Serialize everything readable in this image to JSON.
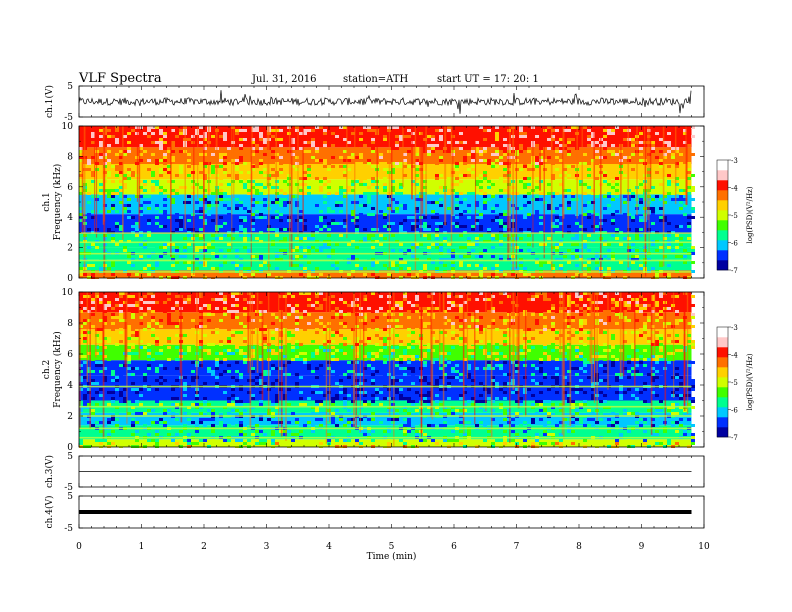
{
  "header": {
    "title": "VLF  Spectra",
    "date": "Jul.  31,  2016",
    "station": "station=ATH",
    "start_ut": "start  UT  =    17: 20: 1"
  },
  "chart_data": [
    {
      "type": "line",
      "panel": "ch1-waveform",
      "ylabel": "ch.1(V)",
      "y_ticks": [
        "5",
        "-5"
      ],
      "ylim": [
        -5,
        5
      ],
      "trace_level_v": 0,
      "noise_amplitude_v": 1.2,
      "color": "#000000"
    },
    {
      "type": "heatmap",
      "panel": "ch1-spectrogram",
      "ylabel_channel": "ch.1",
      "ylabel": "Frequency  (kHz)",
      "y_ticks": [
        "0",
        "2",
        "4",
        "6",
        "8",
        "10"
      ],
      "ylim": [
        0,
        10
      ],
      "colorbar": {
        "label": "log(PSD)(V²/Hz)",
        "ticks": [
          "-3",
          "-4",
          "-5",
          "-6",
          "-7"
        ],
        "range": [
          -7,
          -3
        ],
        "colors": [
          "#0000a0",
          "#0030ff",
          "#00c8ff",
          "#00ff90",
          "#40ff00",
          "#d0ff00",
          "#ffd000",
          "#ff7000",
          "#ff1000",
          "#ffc8c8",
          "#ffffff"
        ]
      },
      "bands": [
        {
          "from_khz": 0.0,
          "to_khz": 0.5,
          "log_psd": -4.2
        },
        {
          "from_khz": 0.5,
          "to_khz": 1.2,
          "log_psd": -5.4
        },
        {
          "from_khz": 1.2,
          "to_khz": 2.0,
          "log_psd": -5.7
        },
        {
          "from_khz": 2.0,
          "to_khz": 2.9,
          "log_psd": -5.4
        },
        {
          "from_khz": 2.9,
          "to_khz": 4.2,
          "log_psd": -6.3
        },
        {
          "from_khz": 4.2,
          "to_khz": 5.5,
          "log_psd": -6.0
        },
        {
          "from_khz": 5.5,
          "to_khz": 6.5,
          "log_psd": -5.0
        },
        {
          "from_khz": 6.5,
          "to_khz": 7.5,
          "log_psd": -4.5
        },
        {
          "from_khz": 7.5,
          "to_khz": 8.6,
          "log_psd": -4.0
        },
        {
          "from_khz": 8.6,
          "to_khz": 10.0,
          "log_psd": -3.6
        }
      ],
      "lines_khz": [
        0.4,
        1.15,
        1.6,
        2.35,
        2.95
      ]
    },
    {
      "type": "heatmap",
      "panel": "ch2-spectrogram",
      "ylabel_channel": "ch.2",
      "ylabel": "Frequency  (kHz)",
      "y_ticks": [
        "0",
        "2",
        "4",
        "6",
        "8",
        "10"
      ],
      "ylim": [
        0,
        10
      ],
      "colorbar": {
        "label": "log(PSD)(V²/Hz)",
        "ticks": [
          "-3",
          "-4",
          "-5",
          "-6",
          "-7"
        ],
        "range": [
          -7,
          -3
        ],
        "colors": [
          "#0000a0",
          "#0030ff",
          "#00c8ff",
          "#00ff90",
          "#40ff00",
          "#d0ff00",
          "#ffd000",
          "#ff7000",
          "#ff1000",
          "#ffc8c8",
          "#ffffff"
        ]
      },
      "bands": [
        {
          "from_khz": 0.0,
          "to_khz": 0.5,
          "log_psd": -4.8
        },
        {
          "from_khz": 0.5,
          "to_khz": 1.4,
          "log_psd": -5.6
        },
        {
          "from_khz": 1.4,
          "to_khz": 2.2,
          "log_psd": -6.1
        },
        {
          "from_khz": 2.2,
          "to_khz": 3.0,
          "log_psd": -5.5
        },
        {
          "from_khz": 3.0,
          "to_khz": 4.6,
          "log_psd": -6.6
        },
        {
          "from_khz": 4.6,
          "to_khz": 5.6,
          "log_psd": -6.2
        },
        {
          "from_khz": 5.6,
          "to_khz": 6.6,
          "log_psd": -5.1
        },
        {
          "from_khz": 6.6,
          "to_khz": 7.6,
          "log_psd": -4.5
        },
        {
          "from_khz": 7.6,
          "to_khz": 8.7,
          "log_psd": -4.1
        },
        {
          "from_khz": 8.7,
          "to_khz": 10.0,
          "log_psd": -3.8
        }
      ],
      "lines_khz": [
        0.6,
        1.2,
        2.0,
        2.6,
        3.9
      ]
    },
    {
      "type": "line",
      "panel": "ch3-waveform",
      "ylabel": "ch.3(V)",
      "y_ticks": [
        "5",
        "-5"
      ],
      "ylim": [
        -5,
        5
      ],
      "trace_level_v": 0,
      "noise_amplitude_v": 0.05,
      "color": "#000000"
    },
    {
      "type": "line",
      "panel": "ch4-waveform",
      "ylabel": "ch.4(V)",
      "y_ticks": [
        "5",
        "-5"
      ],
      "ylim": [
        -5,
        5
      ],
      "trace_level_v": 0,
      "noise_amplitude_v": 0.3,
      "color": "#000000"
    }
  ],
  "time_axis": {
    "xlabel": "Time  (min)",
    "ticks": [
      "0",
      "1",
      "2",
      "3",
      "4",
      "5",
      "6",
      "7",
      "8",
      "9",
      "10"
    ],
    "xlim": [
      0,
      10
    ],
    "data_end_min": 9.8
  }
}
